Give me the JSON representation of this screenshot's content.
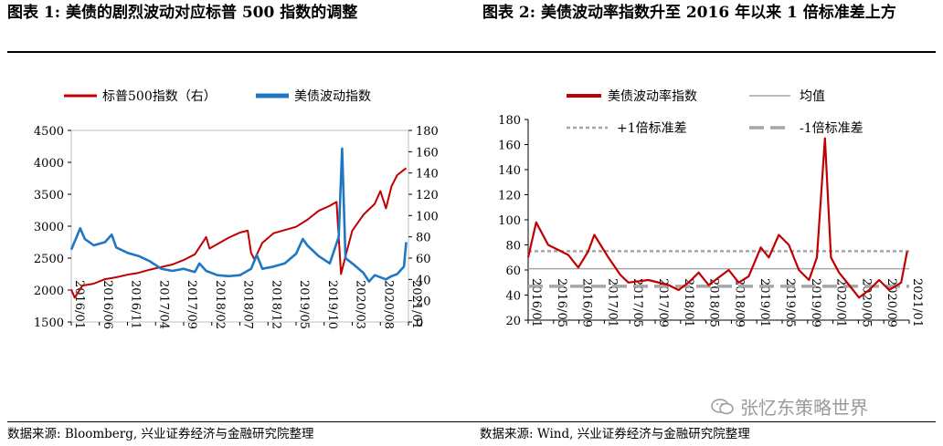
{
  "panel1": {
    "title": "图表 1:  美债的剧烈波动对应标普 500 指数的调整",
    "source": "数据来源:  Bloomberg, 兴业证券经济与金融研究院整理"
  },
  "panel2": {
    "title": "图表 2:  美债波动率指数升至 2016 年以来 1 倍标准差上方",
    "source": "数据来源:  Wind, 兴业证券经济与金融研究院整理"
  },
  "watermark": {
    "text": "张忆东策略世界",
    "icon": "wechat-icon"
  },
  "colors": {
    "sp500": "#c00000",
    "vol": "#1f77c4",
    "mean": "#a6a6a6",
    "band": "#a6a6a6"
  },
  "chart_data": [
    {
      "type": "line",
      "title": "",
      "x_ticks": [
        "2016/01",
        "2016/06",
        "2016/11",
        "2017/04",
        "2017/09",
        "2018/02",
        "2018/07",
        "2018/12",
        "2019/05",
        "2019/10",
        "2020/03",
        "2020/08",
        "2021/01"
      ],
      "y_left": {
        "min": 1500,
        "max": 4500,
        "step": 500,
        "ticks": [
          "1500",
          "2000",
          "2500",
          "3000",
          "3500",
          "4000",
          "4500"
        ]
      },
      "y_right": {
        "min": 0,
        "max": 180,
        "step": 20,
        "ticks": [
          "0",
          "20",
          "40",
          "60",
          "80",
          "100",
          "120",
          "140",
          "160",
          "180"
        ]
      },
      "series": [
        {
          "name": "标普500指数（右）",
          "axis": "left",
          "color": "#c00000",
          "points": [
            [
              0,
              2010
            ],
            [
              0.3,
              1880
            ],
            [
              1,
              2070
            ],
            [
              2,
              2100
            ],
            [
              3,
              2170
            ],
            [
              4,
              2200
            ],
            [
              5,
              2240
            ],
            [
              6,
              2270
            ],
            [
              7,
              2320
            ],
            [
              8,
              2360
            ],
            [
              9,
              2400
            ],
            [
              10,
              2470
            ],
            [
              11,
              2560
            ],
            [
              12,
              2830
            ],
            [
              12.3,
              2650
            ],
            [
              13,
              2720
            ],
            [
              14,
              2820
            ],
            [
              15,
              2900
            ],
            [
              15.7,
              2930
            ],
            [
              16,
              2580
            ],
            [
              16.3,
              2480
            ],
            [
              17,
              2740
            ],
            [
              18,
              2890
            ],
            [
              19,
              2940
            ],
            [
              20,
              2990
            ],
            [
              21,
              3100
            ],
            [
              22,
              3240
            ],
            [
              23,
              3320
            ],
            [
              23.6,
              3380
            ],
            [
              24,
              2250
            ],
            [
              24.5,
              2600
            ],
            [
              25,
              2930
            ],
            [
              26,
              3180
            ],
            [
              27,
              3350
            ],
            [
              27.5,
              3550
            ],
            [
              28,
              3280
            ],
            [
              28.5,
              3630
            ],
            [
              29,
              3800
            ],
            [
              29.8,
              3910
            ]
          ]
        },
        {
          "name": "美债波动指数",
          "axis": "right",
          "color": "#1f77c4",
          "points": [
            [
              0,
              68
            ],
            [
              0.8,
              88
            ],
            [
              1.2,
              78
            ],
            [
              2,
              72
            ],
            [
              3,
              75
            ],
            [
              3.6,
              82
            ],
            [
              4,
              70
            ],
            [
              5,
              65
            ],
            [
              6,
              62
            ],
            [
              7,
              57
            ],
            [
              8,
              50
            ],
            [
              9,
              48
            ],
            [
              10,
              50
            ],
            [
              11,
              47
            ],
            [
              11.4,
              55
            ],
            [
              12,
              48
            ],
            [
              13,
              44
            ],
            [
              14,
              43
            ],
            [
              15,
              44
            ],
            [
              16,
              50
            ],
            [
              16.5,
              63
            ],
            [
              17,
              50
            ],
            [
              18,
              52
            ],
            [
              19,
              55
            ],
            [
              20,
              64
            ],
            [
              20.6,
              78
            ],
            [
              21,
              72
            ],
            [
              22,
              62
            ],
            [
              23,
              55
            ],
            [
              23.8,
              80
            ],
            [
              24.1,
              163
            ],
            [
              24.4,
              60
            ],
            [
              25,
              55
            ],
            [
              26,
              46
            ],
            [
              26.5,
              38
            ],
            [
              27,
              44
            ],
            [
              28,
              40
            ],
            [
              28.5,
              43
            ],
            [
              29,
              45
            ],
            [
              29.6,
              52
            ],
            [
              29.8,
              75
            ]
          ]
        }
      ]
    },
    {
      "type": "line",
      "title": "",
      "x_ticks": [
        "2016/01",
        "2016/05",
        "2016/09",
        "2017/01",
        "2017/05",
        "2017/09",
        "2018/01",
        "2018/05",
        "2018/09",
        "2019/01",
        "2019/05",
        "2019/09",
        "2020/01",
        "2020/05",
        "2020/09",
        "2021/01"
      ],
      "y": {
        "min": 20,
        "max": 180,
        "step": 20,
        "ticks": [
          "20",
          "40",
          "60",
          "80",
          "100",
          "120",
          "140",
          "160",
          "180"
        ]
      },
      "series": [
        {
          "name": "美债波动率指数",
          "color": "#c00000",
          "points": [
            [
              0,
              70
            ],
            [
              0.4,
              98
            ],
            [
              1,
              80
            ],
            [
              2,
              72
            ],
            [
              2.5,
              62
            ],
            [
              3,
              75
            ],
            [
              3.3,
              88
            ],
            [
              4,
              70
            ],
            [
              4.6,
              56
            ],
            [
              5,
              50
            ],
            [
              6,
              52
            ],
            [
              7,
              48
            ],
            [
              7.5,
              44
            ],
            [
              8,
              50
            ],
            [
              8.5,
              58
            ],
            [
              9,
              48
            ],
            [
              10,
              60
            ],
            [
              10.5,
              50
            ],
            [
              11,
              55
            ],
            [
              11.6,
              78
            ],
            [
              12,
              70
            ],
            [
              12.5,
              88
            ],
            [
              13,
              80
            ],
            [
              13.5,
              60
            ],
            [
              14,
              52
            ],
            [
              14.4,
              70
            ],
            [
              14.8,
              165
            ],
            [
              15.1,
              70
            ],
            [
              15.5,
              58
            ],
            [
              16,
              48
            ],
            [
              16.5,
              38
            ],
            [
              17,
              44
            ],
            [
              17.5,
              52
            ],
            [
              18,
              44
            ],
            [
              18.6,
              50
            ],
            [
              18.9,
              75
            ]
          ]
        }
      ],
      "reference_lines": [
        {
          "name": "均值",
          "value": 61,
          "style": "solid"
        },
        {
          "name": "+1倍标准差",
          "value": 75,
          "style": "dotted"
        },
        {
          "name": "-1倍标准差",
          "value": 47,
          "style": "dashed"
        }
      ]
    }
  ]
}
